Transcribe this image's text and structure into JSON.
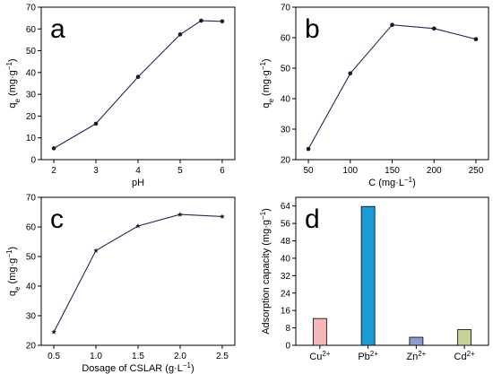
{
  "chart_data": [
    {
      "type": "line",
      "panel_label": "a",
      "xlabel": "pH",
      "ylabel": "q",
      "ylabel_sub": "e",
      "ylabel_unit": "(mg·g",
      "ylabel_sup": "−1",
      "ylabel_close": ")",
      "x": [
        2,
        3,
        4,
        5,
        5.5,
        6
      ],
      "values": [
        5.2,
        16.5,
        38,
        57.5,
        63.8,
        63.5
      ],
      "xlim": [
        1.7,
        6.3
      ],
      "ylim": [
        0,
        70
      ],
      "xticks": [
        2,
        3,
        4,
        5,
        6
      ],
      "yticks": [
        0,
        10,
        20,
        30,
        40,
        50,
        60,
        70
      ],
      "marker": "circle",
      "line_color": "#1f2a5a",
      "grid": false
    },
    {
      "type": "line",
      "panel_label": "b",
      "xlabel": "C (mg·L",
      "xlabel_sup": "−1",
      "xlabel_close": ")",
      "ylabel": "q",
      "ylabel_sub": "e",
      "ylabel_unit": "(mg·g",
      "ylabel_sup": "−1",
      "ylabel_close": ")",
      "x": [
        50,
        100,
        150,
        200,
        250
      ],
      "values": [
        23.5,
        48.3,
        64.2,
        63,
        59.5
      ],
      "xlim": [
        35,
        265
      ],
      "ylim": [
        20,
        70
      ],
      "xticks": [
        50,
        100,
        150,
        200,
        250
      ],
      "yticks": [
        20,
        30,
        40,
        50,
        60,
        70
      ],
      "marker": "circle",
      "line_color": "#1f2a5a",
      "grid": false
    },
    {
      "type": "line",
      "panel_label": "c",
      "xlabel": "Dosage of CSLAR (g·L",
      "xlabel_sup": "−1",
      "xlabel_close": ")",
      "ylabel": "q",
      "ylabel_sub": "e",
      "ylabel_unit": "(mg·g",
      "ylabel_sup": "−1",
      "ylabel_close": ")",
      "x": [
        0.5,
        1.0,
        1.5,
        2.0,
        2.5
      ],
      "x_tick_labels": [
        "0.5",
        "1.0",
        "1.5",
        "2.0",
        "2.5"
      ],
      "values": [
        24.5,
        52,
        60.3,
        64.2,
        63.5
      ],
      "xlim": [
        0.35,
        2.65
      ],
      "ylim": [
        20,
        70
      ],
      "xticks": [
        0.5,
        1.0,
        1.5,
        2.0,
        2.5
      ],
      "yticks": [
        20,
        30,
        40,
        50,
        60,
        70
      ],
      "marker": "star",
      "line_color": "#1f2a5a",
      "grid": false
    },
    {
      "type": "bar",
      "panel_label": "d",
      "ylabel": "Adsorption capacity (mg·g",
      "ylabel_sup": "−1",
      "ylabel_close": ")",
      "categories": [
        {
          "base": "Cu",
          "sup": "2+"
        },
        {
          "base": "Pb",
          "sup": "2+"
        },
        {
          "base": "Zn",
          "sup": "2+"
        },
        {
          "base": "Cd",
          "sup": "2+"
        }
      ],
      "values": [
        12.3,
        63.8,
        3.7,
        7.2
      ],
      "colors": [
        "#f4b8b8",
        "#1a9ad6",
        "#8c9bd0",
        "#c5d49a"
      ],
      "ylim": [
        0,
        68
      ],
      "yticks": [
        0,
        8,
        16,
        24,
        32,
        40,
        48,
        56,
        64
      ],
      "grid": false
    }
  ]
}
